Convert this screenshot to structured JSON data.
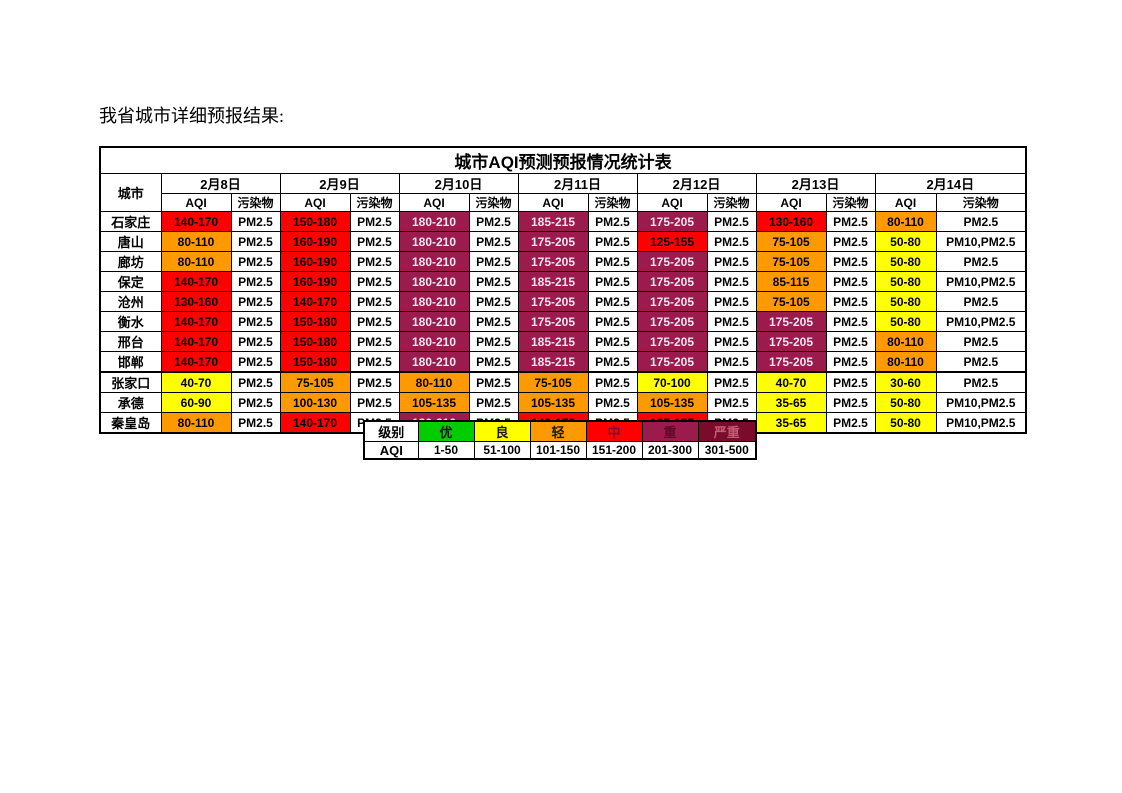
{
  "page": {
    "heading": "我省城市详细预报结果:"
  },
  "table": {
    "title": "城市AQI预测预报情况统计表",
    "city_header": "城市",
    "dates": [
      "2月8日",
      "2月9日",
      "2月10日",
      "2月11日",
      "2月12日",
      "2月13日",
      "2月14日"
    ],
    "subheaders": {
      "aqi": "AQI",
      "pollutant": "污染物"
    }
  },
  "cities": [
    {
      "name": "石家庄",
      "days": [
        {
          "aqi": "140-170",
          "level": "red",
          "pollutant": "PM2.5"
        },
        {
          "aqi": "150-180",
          "level": "red",
          "pollutant": "PM2.5"
        },
        {
          "aqi": "180-210",
          "level": "plum",
          "pollutant": "PM2.5"
        },
        {
          "aqi": "185-215",
          "level": "plum",
          "pollutant": "PM2.5"
        },
        {
          "aqi": "175-205",
          "level": "plum",
          "pollutant": "PM2.5"
        },
        {
          "aqi": "130-160",
          "level": "red",
          "pollutant": "PM2.5"
        },
        {
          "aqi": "80-110",
          "level": "orange",
          "pollutant": "PM2.5"
        }
      ]
    },
    {
      "name": "唐山",
      "days": [
        {
          "aqi": "80-110",
          "level": "orange",
          "pollutant": "PM2.5"
        },
        {
          "aqi": "160-190",
          "level": "red",
          "pollutant": "PM2.5"
        },
        {
          "aqi": "180-210",
          "level": "plum",
          "pollutant": "PM2.5"
        },
        {
          "aqi": "175-205",
          "level": "plum",
          "pollutant": "PM2.5"
        },
        {
          "aqi": "125-155",
          "level": "red",
          "pollutant": "PM2.5"
        },
        {
          "aqi": "75-105",
          "level": "orange",
          "pollutant": "PM2.5"
        },
        {
          "aqi": "50-80",
          "level": "yellow",
          "pollutant": "PM10,PM2.5"
        }
      ]
    },
    {
      "name": "廊坊",
      "days": [
        {
          "aqi": "80-110",
          "level": "orange",
          "pollutant": "PM2.5"
        },
        {
          "aqi": "160-190",
          "level": "red",
          "pollutant": "PM2.5"
        },
        {
          "aqi": "180-210",
          "level": "plum",
          "pollutant": "PM2.5"
        },
        {
          "aqi": "175-205",
          "level": "plum",
          "pollutant": "PM2.5"
        },
        {
          "aqi": "175-205",
          "level": "plum",
          "pollutant": "PM2.5"
        },
        {
          "aqi": "75-105",
          "level": "orange",
          "pollutant": "PM2.5"
        },
        {
          "aqi": "50-80",
          "level": "yellow",
          "pollutant": "PM2.5"
        }
      ]
    },
    {
      "name": "保定",
      "days": [
        {
          "aqi": "140-170",
          "level": "red",
          "pollutant": "PM2.5"
        },
        {
          "aqi": "160-190",
          "level": "red",
          "pollutant": "PM2.5"
        },
        {
          "aqi": "180-210",
          "level": "plum",
          "pollutant": "PM2.5"
        },
        {
          "aqi": "185-215",
          "level": "plum",
          "pollutant": "PM2.5"
        },
        {
          "aqi": "175-205",
          "level": "plum",
          "pollutant": "PM2.5"
        },
        {
          "aqi": "85-115",
          "level": "orange",
          "pollutant": "PM2.5"
        },
        {
          "aqi": "50-80",
          "level": "yellow",
          "pollutant": "PM10,PM2.5"
        }
      ]
    },
    {
      "name": "沧州",
      "days": [
        {
          "aqi": "130-160",
          "level": "red",
          "pollutant": "PM2.5"
        },
        {
          "aqi": "140-170",
          "level": "red",
          "pollutant": "PM2.5"
        },
        {
          "aqi": "180-210",
          "level": "plum",
          "pollutant": "PM2.5"
        },
        {
          "aqi": "175-205",
          "level": "plum",
          "pollutant": "PM2.5"
        },
        {
          "aqi": "175-205",
          "level": "plum",
          "pollutant": "PM2.5"
        },
        {
          "aqi": "75-105",
          "level": "orange",
          "pollutant": "PM2.5"
        },
        {
          "aqi": "50-80",
          "level": "yellow",
          "pollutant": "PM2.5"
        }
      ]
    },
    {
      "name": "衡水",
      "days": [
        {
          "aqi": "140-170",
          "level": "red",
          "pollutant": "PM2.5"
        },
        {
          "aqi": "150-180",
          "level": "red",
          "pollutant": "PM2.5"
        },
        {
          "aqi": "180-210",
          "level": "plum",
          "pollutant": "PM2.5"
        },
        {
          "aqi": "175-205",
          "level": "plum",
          "pollutant": "PM2.5"
        },
        {
          "aqi": "175-205",
          "level": "plum",
          "pollutant": "PM2.5"
        },
        {
          "aqi": "175-205",
          "level": "plum",
          "pollutant": "PM2.5"
        },
        {
          "aqi": "50-80",
          "level": "yellow",
          "pollutant": "PM10,PM2.5"
        }
      ]
    },
    {
      "name": "邢台",
      "days": [
        {
          "aqi": "140-170",
          "level": "red",
          "pollutant": "PM2.5"
        },
        {
          "aqi": "150-180",
          "level": "red",
          "pollutant": "PM2.5"
        },
        {
          "aqi": "180-210",
          "level": "plum",
          "pollutant": "PM2.5"
        },
        {
          "aqi": "185-215",
          "level": "plum",
          "pollutant": "PM2.5"
        },
        {
          "aqi": "175-205",
          "level": "plum",
          "pollutant": "PM2.5"
        },
        {
          "aqi": "175-205",
          "level": "plum",
          "pollutant": "PM2.5"
        },
        {
          "aqi": "80-110",
          "level": "orange",
          "pollutant": "PM2.5"
        }
      ]
    },
    {
      "name": "邯郸",
      "days": [
        {
          "aqi": "140-170",
          "level": "red",
          "pollutant": "PM2.5"
        },
        {
          "aqi": "150-180",
          "level": "red",
          "pollutant": "PM2.5"
        },
        {
          "aqi": "180-210",
          "level": "plum",
          "pollutant": "PM2.5"
        },
        {
          "aqi": "185-215",
          "level": "plum",
          "pollutant": "PM2.5"
        },
        {
          "aqi": "175-205",
          "level": "plum",
          "pollutant": "PM2.5"
        },
        {
          "aqi": "175-205",
          "level": "plum",
          "pollutant": "PM2.5"
        },
        {
          "aqi": "80-110",
          "level": "orange",
          "pollutant": "PM2.5"
        }
      ]
    },
    {
      "name": "张家口",
      "days": [
        {
          "aqi": "40-70",
          "level": "yellow",
          "pollutant": "PM2.5"
        },
        {
          "aqi": "75-105",
          "level": "orange",
          "pollutant": "PM2.5"
        },
        {
          "aqi": "80-110",
          "level": "orange",
          "pollutant": "PM2.5"
        },
        {
          "aqi": "75-105",
          "level": "orange",
          "pollutant": "PM2.5"
        },
        {
          "aqi": "70-100",
          "level": "yellow",
          "pollutant": "PM2.5"
        },
        {
          "aqi": "40-70",
          "level": "yellow",
          "pollutant": "PM2.5"
        },
        {
          "aqi": "30-60",
          "level": "yellow",
          "pollutant": "PM2.5"
        }
      ]
    },
    {
      "name": "承德",
      "days": [
        {
          "aqi": "60-90",
          "level": "yellow",
          "pollutant": "PM2.5"
        },
        {
          "aqi": "100-130",
          "level": "orange",
          "pollutant": "PM2.5"
        },
        {
          "aqi": "105-135",
          "level": "orange",
          "pollutant": "PM2.5"
        },
        {
          "aqi": "105-135",
          "level": "orange",
          "pollutant": "PM2.5"
        },
        {
          "aqi": "105-135",
          "level": "orange",
          "pollutant": "PM2.5"
        },
        {
          "aqi": "35-65",
          "level": "yellow",
          "pollutant": "PM2.5"
        },
        {
          "aqi": "50-80",
          "level": "yellow",
          "pollutant": "PM10,PM2.5"
        }
      ]
    },
    {
      "name": "秦皇岛",
      "days": [
        {
          "aqi": "80-110",
          "level": "orange",
          "pollutant": "PM2.5"
        },
        {
          "aqi": "140-170",
          "level": "red",
          "pollutant": "PM2.5"
        },
        {
          "aqi": "180-210",
          "level": "plum",
          "pollutant": "PM2.5"
        },
        {
          "aqi": "140-170",
          "level": "red",
          "pollutant": "PM2.5"
        },
        {
          "aqi": "125-155",
          "level": "red",
          "pollutant": "PM2.5"
        },
        {
          "aqi": "35-65",
          "level": "yellow",
          "pollutant": "PM2.5"
        },
        {
          "aqi": "50-80",
          "level": "yellow",
          "pollutant": "PM10,PM2.5"
        }
      ]
    }
  ],
  "legend": {
    "level_label": "级别",
    "aqi_label": "AQI",
    "levels": [
      {
        "label": "优",
        "range": "1-50",
        "level": "green"
      },
      {
        "label": "良",
        "range": "51-100",
        "level": "yellow"
      },
      {
        "label": "轻",
        "range": "101-150",
        "level": "orange"
      },
      {
        "label": "中",
        "range": "151-200",
        "level": "red"
      },
      {
        "label": "重",
        "range": "201-300",
        "level": "plum"
      },
      {
        "label": "严重",
        "range": "301-500",
        "level": "dark"
      }
    ]
  },
  "colors": {
    "green": "#00CC00",
    "yellow": "#FFFF00",
    "orange": "#FF9900",
    "red": "#FF0000",
    "plum": "#9B1B4D",
    "dark": "#7A0B2B"
  }
}
